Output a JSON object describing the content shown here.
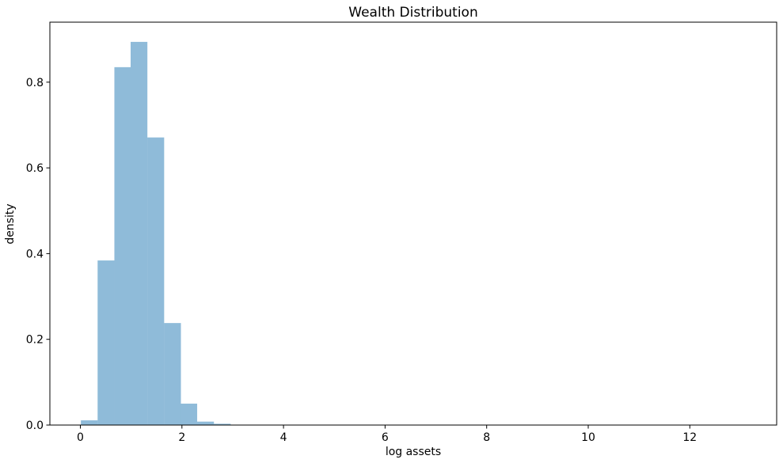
{
  "chart_data": {
    "type": "histogram",
    "title": "Wealth Distribution",
    "xlabel": "log assets",
    "ylabel": "density",
    "bin_edges": [
      0.01,
      0.34,
      0.67,
      0.99,
      1.32,
      1.65,
      1.98,
      2.3,
      2.63,
      2.96
    ],
    "densities": [
      0.011,
      0.384,
      0.835,
      0.894,
      0.671,
      0.238,
      0.05,
      0.008,
      0.003
    ],
    "xlim": [
      -0.6,
      13.71
    ],
    "ylim": [
      0,
      0.94
    ],
    "x_ticks": [
      0,
      2,
      4,
      6,
      8,
      10,
      12
    ],
    "x_tick_labels": [
      "0",
      "2",
      "4",
      "6",
      "8",
      "10",
      "12"
    ],
    "y_ticks": [
      0.0,
      0.2,
      0.4,
      0.6,
      0.8
    ],
    "y_tick_labels": [
      "0.0",
      "0.2",
      "0.4",
      "0.6",
      "0.8"
    ],
    "grid": false,
    "legend": null,
    "colors": {
      "bar_fill": "#1f77b4",
      "bar_opacity": 0.5,
      "frame": "#000000",
      "background": "#ffffff",
      "text": "#000000"
    }
  }
}
